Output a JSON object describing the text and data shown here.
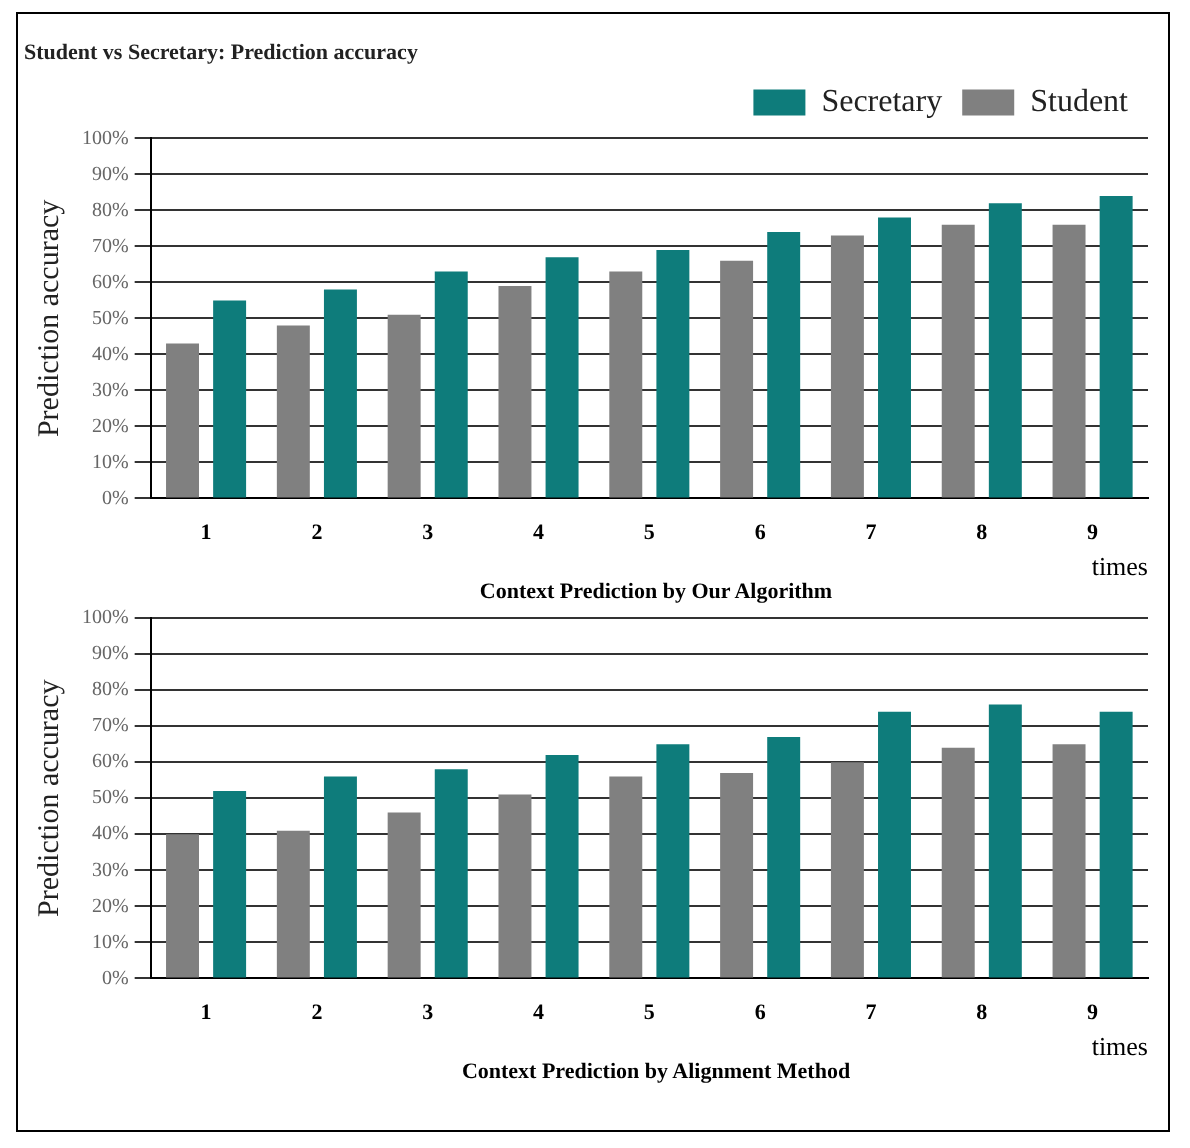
{
  "chart_data": [
    {
      "type": "bar",
      "title": "Student vs Secretary: Prediction accuracy",
      "xlabel": "times",
      "ylabel": "Prediction accuracy",
      "categories": [
        "1",
        "2",
        "3",
        "4",
        "5",
        "6",
        "7",
        "8",
        "9"
      ],
      "series": [
        {
          "name": "Student",
          "color": "#808080",
          "values": [
            43,
            48,
            51,
            59,
            63,
            66,
            73,
            76,
            76
          ]
        },
        {
          "name": "Secretary",
          "color": "#0e7c7b",
          "values": [
            55,
            58,
            63,
            67,
            69,
            74,
            78,
            82,
            84
          ]
        }
      ],
      "ylim": [
        0,
        100
      ],
      "yticks": [
        {
          "value": 0,
          "label": "0%"
        },
        {
          "value": 10,
          "label": "10%"
        },
        {
          "value": 20,
          "label": "20%"
        },
        {
          "value": 30,
          "label": "30%"
        },
        {
          "value": 40,
          "label": "40%"
        },
        {
          "value": 50,
          "label": "50%"
        },
        {
          "value": 60,
          "label": "60%"
        },
        {
          "value": 70,
          "label": "70%"
        },
        {
          "value": 80,
          "label": "80%"
        },
        {
          "value": 90,
          "label": "90%"
        },
        {
          "value": 100,
          "label": "100%"
        }
      ],
      "grid": "y",
      "legend": "top right",
      "annotations": [
        "Context Prediction by Our Algorithm"
      ]
    },
    {
      "type": "bar",
      "xlabel": "times",
      "ylabel": "Prediction accuracy",
      "categories": [
        "1",
        "2",
        "3",
        "4",
        "5",
        "6",
        "7",
        "8",
        "9"
      ],
      "series": [
        {
          "color": "#808080",
          "values": [
            40,
            41,
            46,
            51,
            56,
            57,
            60,
            64,
            65
          ]
        },
        {
          "color": "#0e7c7b",
          "values": [
            52,
            56,
            58,
            62,
            65,
            67,
            74,
            76,
            74
          ]
        }
      ],
      "ylim": [
        0,
        100
      ],
      "yticks": [
        {
          "value": 0,
          "label": "0%"
        },
        {
          "value": 10,
          "label": "10%"
        },
        {
          "value": 20,
          "label": "20%"
        },
        {
          "value": 30,
          "label": "30%"
        },
        {
          "value": 40,
          "label": "40%"
        },
        {
          "value": 50,
          "label": "50%"
        },
        {
          "value": 60,
          "label": "60%"
        },
        {
          "value": 70,
          "label": "70%"
        },
        {
          "value": 80,
          "label": "80%"
        },
        {
          "value": 90,
          "label": "90%"
        },
        {
          "value": 100,
          "label": "100%"
        }
      ],
      "grid": "y",
      "annotations": [
        "Context Prediction by Alignment Method"
      ]
    }
  ]
}
